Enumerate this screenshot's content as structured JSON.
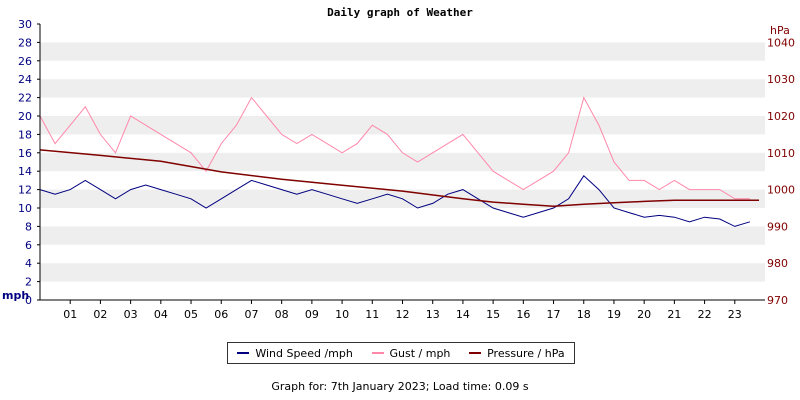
{
  "chart_data": {
    "type": "line",
    "title": "Daily graph of Weather",
    "left_unit": "mph",
    "right_unit": "hPa",
    "x_ticks": [
      "01",
      "02",
      "03",
      "04",
      "05",
      "06",
      "07",
      "08",
      "09",
      "10",
      "11",
      "12",
      "13",
      "14",
      "15",
      "16",
      "17",
      "18",
      "19",
      "20",
      "21",
      "22",
      "23"
    ],
    "x_range": [
      0,
      24
    ],
    "ylim_left": [
      0,
      30
    ],
    "y_ticks_left": [
      0,
      2,
      4,
      6,
      8,
      10,
      12,
      14,
      16,
      18,
      20,
      22,
      24,
      26,
      28,
      30
    ],
    "ylim_right": [
      970,
      1045
    ],
    "y_ticks_right": [
      970,
      980,
      990,
      1000,
      1010,
      1020,
      1030,
      1040
    ],
    "grid": "horizontal bands",
    "legend_position": "bottom",
    "series": [
      {
        "name": "Wind Speed /mph",
        "axis": "left",
        "color": "#000080",
        "x": [
          0,
          0.5,
          1,
          1.5,
          2,
          2.5,
          3,
          3.5,
          4,
          4.5,
          5,
          5.5,
          6,
          6.5,
          7,
          7.5,
          8,
          8.5,
          9,
          9.5,
          10,
          10.5,
          11,
          11.5,
          12,
          12.5,
          13,
          13.5,
          14,
          14.5,
          15,
          15.5,
          16,
          16.5,
          17,
          17.5,
          18,
          18.5,
          19,
          19.5,
          20,
          20.5,
          21,
          21.5,
          22,
          22.5,
          23,
          23.5
        ],
        "values": [
          12,
          11.5,
          12,
          13,
          12,
          11,
          12,
          12.5,
          12,
          11.5,
          11,
          10,
          11,
          12,
          13,
          12.5,
          12,
          11.5,
          12,
          11.5,
          11,
          10.5,
          11,
          11.5,
          11,
          10,
          10.5,
          11.5,
          12,
          11,
          10,
          9.5,
          9,
          9.5,
          10,
          11,
          13.5,
          12,
          10,
          9.5,
          9,
          9.2,
          9,
          8.5,
          9,
          8.8,
          8,
          8.5
        ]
      },
      {
        "name": "Gust / mph",
        "axis": "left",
        "color": "#ff88aa",
        "x": [
          0,
          0.5,
          1,
          1.5,
          2,
          2.5,
          3,
          3.5,
          4,
          4.5,
          5,
          5.5,
          6,
          6.5,
          7,
          7.5,
          8,
          8.5,
          9,
          9.5,
          10,
          10.5,
          11,
          11.5,
          12,
          12.5,
          13,
          13.5,
          14,
          14.5,
          15,
          15.5,
          16,
          16.5,
          17,
          17.5,
          18,
          18.5,
          19,
          19.5,
          20,
          20.5,
          21,
          21.5,
          22,
          22.5,
          23,
          23.5
        ],
        "values": [
          20,
          17,
          19,
          21,
          18,
          16,
          20,
          19,
          18,
          17,
          16,
          14,
          17,
          19,
          22,
          20,
          18,
          17,
          18,
          17,
          16,
          17,
          19,
          18,
          16,
          15,
          16,
          17,
          18,
          16,
          14,
          13,
          12,
          13,
          14,
          16,
          22,
          19,
          15,
          13,
          13,
          12,
          13,
          12,
          12,
          12,
          11,
          11
        ]
      },
      {
        "name": "Pressure / hPa",
        "axis": "right",
        "color": "#800000",
        "x": [
          0,
          2,
          4,
          6,
          8,
          10,
          12,
          14,
          15,
          16,
          17,
          18,
          19,
          20,
          21,
          22,
          23,
          23.8
        ],
        "values": [
          1010.8,
          1009.3,
          1007.7,
          1004.8,
          1002.8,
          1001.2,
          999.6,
          997.5,
          996.6,
          996,
          995.5,
          996,
          996.4,
          996.8,
          997.1,
          997.1,
          997.1,
          997.1
        ]
      }
    ]
  },
  "footer": "Graph for: 7th January 2023; Load time: 0.09 s"
}
